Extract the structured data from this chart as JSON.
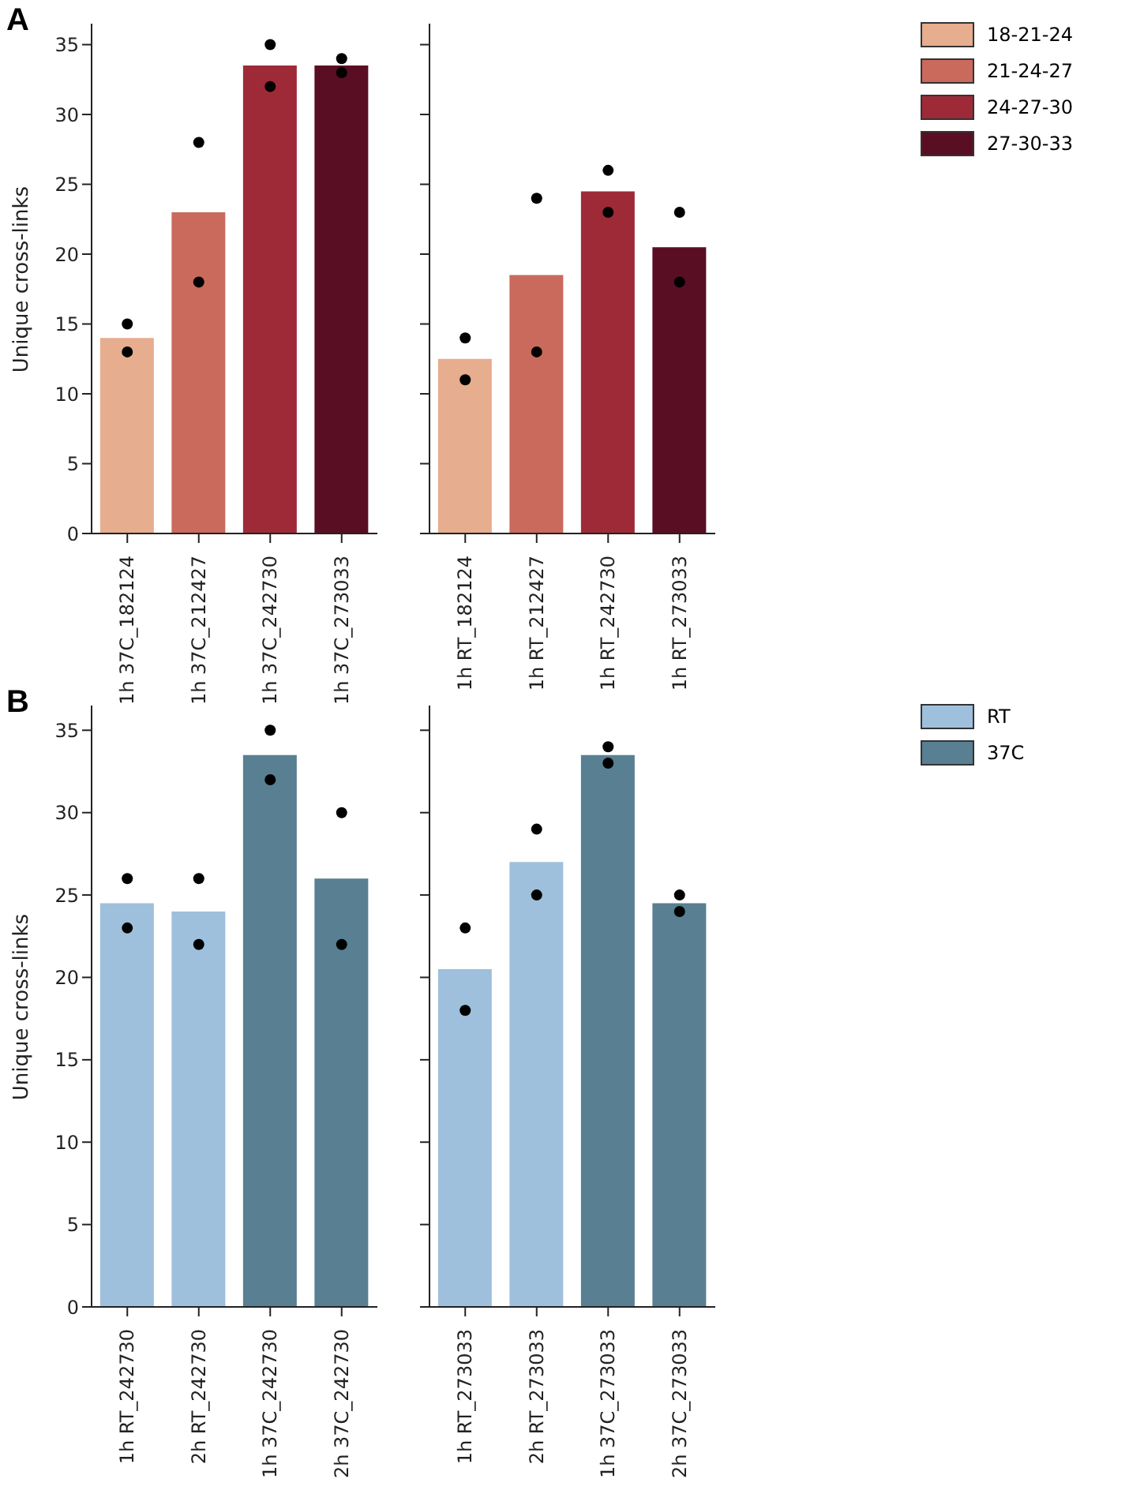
{
  "chart_data": [
    {
      "type": "bar",
      "title": "A",
      "ylabel": "Unique cross-links",
      "categories": [
        "1h 37C_182124",
        "1h 37C_212427",
        "1h 37C_242730",
        "1h 37C_273033"
      ],
      "stacked": true,
      "ylim": [
        0,
        36.5
      ],
      "yticks": [
        0,
        5,
        10,
        15,
        20,
        25,
        30,
        35
      ],
      "legend": false,
      "series": [
        {
          "color": "#e6ad8e",
          "values": [
            14,
            null,
            null,
            null
          ]
        },
        {
          "color": "#c96a5c",
          "values": [
            null,
            23,
            null,
            null
          ]
        },
        {
          "color": "#9e2a38",
          "values": [
            null,
            null,
            33.5,
            null
          ]
        },
        {
          "color": "#5a0e24",
          "values": [
            null,
            null,
            null,
            33.5
          ]
        },
        {
          "type": "scatter",
          "color": "#000000",
          "x": [
            "1h 37C_182124",
            "1h 37C_182124",
            "1h 37C_212427",
            "1h 37C_212427",
            "1h 37C_242730",
            "1h 37C_242730",
            "1h 37C_273033",
            "1h 37C_273033"
          ],
          "values": [
            15,
            13,
            28,
            18,
            35,
            32,
            34,
            33
          ]
        }
      ]
    },
    {
      "type": "bar",
      "categories": [
        "1h RT_182124",
        "1h RT_212427",
        "1h RT_242730",
        "1h RT_273033"
      ],
      "stacked": true,
      "ylim": [
        0,
        36.5
      ],
      "yticks": [
        0,
        5,
        10,
        15,
        20,
        25,
        30,
        35
      ],
      "tick_labels": "x",
      "legend": "right",
      "series": [
        {
          "name": "18-21-24",
          "color": "#e6ad8e",
          "values": [
            12.5,
            null,
            null,
            null
          ]
        },
        {
          "name": "21-24-27",
          "color": "#c96a5c",
          "values": [
            null,
            18.5,
            null,
            null
          ]
        },
        {
          "name": "24-27-30",
          "color": "#9e2a38",
          "values": [
            null,
            null,
            24.5,
            null
          ]
        },
        {
          "name": "27-30-33",
          "color": "#5a0e24",
          "values": [
            null,
            null,
            null,
            20.5
          ]
        },
        {
          "type": "scatter",
          "color": "#000000",
          "x": [
            "1h RT_182124",
            "1h RT_182124",
            "1h RT_212427",
            "1h RT_212427",
            "1h RT_242730",
            "1h RT_242730",
            "1h RT_273033",
            "1h RT_273033"
          ],
          "values": [
            14,
            11,
            24,
            13,
            26,
            23,
            23,
            18
          ]
        }
      ]
    },
    {
      "type": "bar",
      "title": "B",
      "ylabel": "Unique cross-links",
      "categories": [
        "1h RT_242730",
        "2h RT_242730",
        "1h 37C_242730",
        "2h 37C_242730"
      ],
      "stacked": true,
      "ylim": [
        0,
        36.5
      ],
      "yticks": [
        0,
        5,
        10,
        15,
        20,
        25,
        30,
        35
      ],
      "legend": false,
      "series": [
        {
          "color": "#9ec0dc",
          "values": [
            24.5,
            24,
            null,
            null
          ]
        },
        {
          "color": "#587f92",
          "values": [
            null,
            null,
            33.5,
            26
          ]
        },
        {
          "type": "scatter",
          "color": "#000000",
          "x": [
            "1h RT_242730",
            "1h RT_242730",
            "2h RT_242730",
            "2h RT_242730",
            "1h 37C_242730",
            "1h 37C_242730",
            "2h 37C_242730",
            "2h 37C_242730"
          ],
          "values": [
            26,
            23,
            26,
            22,
            35,
            32,
            30,
            22
          ]
        }
      ]
    },
    {
      "type": "bar",
      "categories": [
        "1h RT_273033",
        "2h RT_273033",
        "1h 37C_273033",
        "2h 37C_273033"
      ],
      "stacked": true,
      "ylim": [
        0,
        36.5
      ],
      "yticks": [
        0,
        5,
        10,
        15,
        20,
        25,
        30,
        35
      ],
      "tick_labels": "x",
      "legend": "right",
      "series": [
        {
          "name": "RT",
          "color": "#9ec0dc",
          "values": [
            20.5,
            27,
            null,
            null
          ]
        },
        {
          "name": "37C",
          "color": "#587f92",
          "values": [
            null,
            null,
            33.5,
            24.5
          ]
        },
        {
          "type": "scatter",
          "color": "#000000",
          "x": [
            "1h RT_273033",
            "1h RT_273033",
            "2h RT_273033",
            "2h RT_273033",
            "1h 37C_273033",
            "1h 37C_273033",
            "2h 37C_273033",
            "2h 37C_273033"
          ],
          "values": [
            23,
            18,
            29,
            25,
            34,
            33,
            25,
            24
          ]
        }
      ]
    }
  ]
}
